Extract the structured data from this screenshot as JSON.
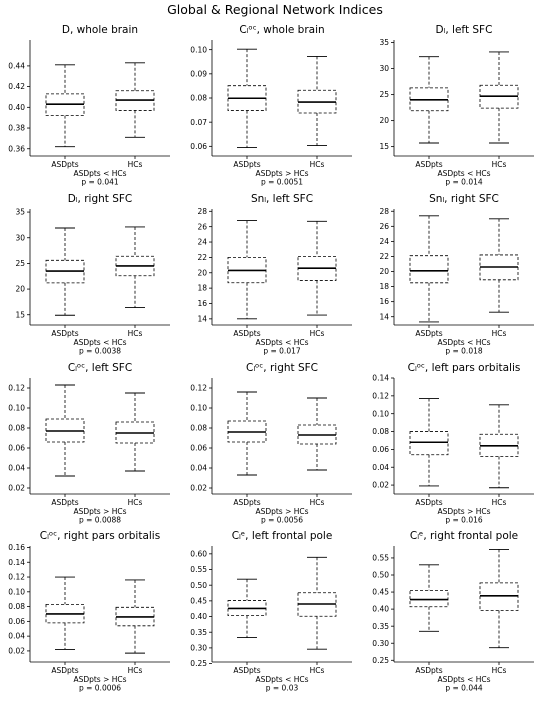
{
  "figure_title": "Global & Regional Network Indices",
  "chart_data": [
    {
      "type": "boxplot",
      "title": "D, whole brain",
      "categories": [
        "ASDpts",
        "HCs"
      ],
      "yticks": [
        0.36,
        0.38,
        0.4,
        0.42,
        0.44
      ],
      "ylim": [
        0.353,
        0.465
      ],
      "boxes": [
        {
          "whislo": 0.362,
          "q1": 0.392,
          "med": 0.403,
          "q3": 0.413,
          "whishi": 0.441
        },
        {
          "whislo": 0.371,
          "q1": 0.397,
          "med": 0.407,
          "q3": 0.416,
          "whishi": 0.443
        }
      ],
      "annotation": [
        "ASDpts < HCs",
        "p = 0.041"
      ]
    },
    {
      "type": "boxplot",
      "title": "Cₗᵒᶜ, whole brain",
      "categories": [
        "ASDpts",
        "HCs"
      ],
      "yticks": [
        0.06,
        0.07,
        0.08,
        0.09,
        0.1
      ],
      "ylim": [
        0.056,
        0.104
      ],
      "boxes": [
        {
          "whislo": 0.0595,
          "q1": 0.0748,
          "med": 0.0799,
          "q3": 0.0851,
          "whishi": 0.1002
        },
        {
          "whislo": 0.0603,
          "q1": 0.0738,
          "med": 0.0783,
          "q3": 0.0832,
          "whishi": 0.0972
        }
      ],
      "annotation": [
        "ASDpts > HCs",
        "p = 0.0051"
      ]
    },
    {
      "type": "boxplot",
      "title": "Dₗ, left SFC",
      "categories": [
        "ASDpts",
        "HCs"
      ],
      "yticks": [
        15,
        20,
        25,
        30,
        35
      ],
      "ylim": [
        13.2,
        35.5
      ],
      "boxes": [
        {
          "whislo": 15.7,
          "q1": 21.9,
          "med": 24.0,
          "q3": 26.3,
          "whishi": 32.3
        },
        {
          "whislo": 15.7,
          "q1": 22.4,
          "med": 24.7,
          "q3": 26.8,
          "whishi": 33.2
        }
      ],
      "annotation": [
        "ASDpts < HCs",
        "p = 0.014"
      ]
    },
    {
      "type": "boxplot",
      "title": "Dₗ, right SFC",
      "categories": [
        "ASDpts",
        "HCs"
      ],
      "yticks": [
        15,
        20,
        25,
        30,
        35
      ],
      "ylim": [
        13.0,
        35.6
      ],
      "boxes": [
        {
          "whislo": 14.9,
          "q1": 21.2,
          "med": 23.5,
          "q3": 25.6,
          "whishi": 31.9
        },
        {
          "whislo": 16.4,
          "q1": 22.6,
          "med": 24.5,
          "q3": 26.4,
          "whishi": 32.1
        }
      ],
      "annotation": [
        "ASDpts < HCs",
        "p = 0.0038"
      ]
    },
    {
      "type": "boxplot",
      "title": "Snₗ, left SFC",
      "categories": [
        "ASDpts",
        "HCs"
      ],
      "yticks": [
        14,
        16,
        18,
        20,
        22,
        24,
        26,
        28
      ],
      "ylim": [
        13.2,
        28.3
      ],
      "boxes": [
        {
          "whislo": 14.0,
          "q1": 18.7,
          "med": 20.3,
          "q3": 22.0,
          "whishi": 26.8
        },
        {
          "whislo": 14.5,
          "q1": 19.0,
          "med": 20.6,
          "q3": 22.1,
          "whishi": 26.7
        }
      ],
      "annotation": [
        "ASDpts < HCs",
        "p = 0.017"
      ]
    },
    {
      "type": "boxplot",
      "title": "Snₗ, right SFC",
      "categories": [
        "ASDpts",
        "HCs"
      ],
      "yticks": [
        14,
        16,
        18,
        20,
        22,
        24,
        26,
        28
      ],
      "ylim": [
        12.9,
        28.3
      ],
      "boxes": [
        {
          "whislo": 13.3,
          "q1": 18.5,
          "med": 20.1,
          "q3": 22.1,
          "whishi": 27.4
        },
        {
          "whislo": 14.6,
          "q1": 18.9,
          "med": 20.6,
          "q3": 22.2,
          "whishi": 27.0
        }
      ],
      "annotation": [
        "ASDpts < HCs",
        "p = 0.018"
      ]
    },
    {
      "type": "boxplot",
      "title": "Cₗᵒᶜ, left SFC",
      "categories": [
        "ASDpts",
        "HCs"
      ],
      "yticks": [
        0.02,
        0.04,
        0.06,
        0.08,
        0.1,
        0.12
      ],
      "ylim": [
        0.014,
        0.13
      ],
      "boxes": [
        {
          "whislo": 0.032,
          "q1": 0.066,
          "med": 0.077,
          "q3": 0.089,
          "whishi": 0.123
        },
        {
          "whislo": 0.037,
          "q1": 0.065,
          "med": 0.075,
          "q3": 0.086,
          "whishi": 0.115
        }
      ],
      "annotation": [
        "ASDpts > HCs",
        "p = 0.0088"
      ]
    },
    {
      "type": "boxplot",
      "title": "Cₗᵒᶜ, right SFC",
      "categories": [
        "ASDpts",
        "HCs"
      ],
      "yticks": [
        0.02,
        0.04,
        0.06,
        0.08,
        0.1,
        0.12
      ],
      "ylim": [
        0.014,
        0.13
      ],
      "boxes": [
        {
          "whislo": 0.033,
          "q1": 0.066,
          "med": 0.076,
          "q3": 0.087,
          "whishi": 0.116
        },
        {
          "whislo": 0.038,
          "q1": 0.064,
          "med": 0.073,
          "q3": 0.083,
          "whishi": 0.11
        }
      ],
      "annotation": [
        "ASDpts > HCs",
        "p = 0.0056"
      ]
    },
    {
      "type": "boxplot",
      "title": "Cₗᵒᶜ, left pars orbitalis",
      "categories": [
        "ASDpts",
        "HCs"
      ],
      "yticks": [
        0.02,
        0.04,
        0.06,
        0.08,
        0.1,
        0.12,
        0.14
      ],
      "ylim": [
        0.01,
        0.14
      ],
      "boxes": [
        {
          "whislo": 0.019,
          "q1": 0.054,
          "med": 0.068,
          "q3": 0.08,
          "whishi": 0.117
        },
        {
          "whislo": 0.017,
          "q1": 0.052,
          "med": 0.064,
          "q3": 0.077,
          "whishi": 0.11
        }
      ],
      "annotation": [
        "ASDpts > HCs",
        "p = 0.016"
      ]
    },
    {
      "type": "boxplot",
      "title": "Cₗᵒᶜ, right pars orbitalis",
      "categories": [
        "ASDpts",
        "HCs"
      ],
      "yticks": [
        0.02,
        0.04,
        0.06,
        0.08,
        0.1,
        0.12,
        0.14,
        0.16
      ],
      "ylim": [
        0.005,
        0.162
      ],
      "boxes": [
        {
          "whislo": 0.022,
          "q1": 0.058,
          "med": 0.07,
          "q3": 0.083,
          "whishi": 0.12
        },
        {
          "whislo": 0.017,
          "q1": 0.054,
          "med": 0.066,
          "q3": 0.079,
          "whishi": 0.116
        }
      ],
      "annotation": [
        "ASDpts > HCs",
        "p = 0.0006"
      ]
    },
    {
      "type": "boxplot",
      "title": "Cₗᵉ, left frontal pole",
      "categories": [
        "ASDpts",
        "HCs"
      ],
      "yticks": [
        0.25,
        0.3,
        0.35,
        0.4,
        0.45,
        0.5,
        0.55,
        0.6
      ],
      "ylim": [
        0.255,
        0.625
      ],
      "boxes": [
        {
          "whislo": 0.333,
          "q1": 0.403,
          "med": 0.426,
          "q3": 0.451,
          "whishi": 0.519
        },
        {
          "whislo": 0.296,
          "q1": 0.401,
          "med": 0.44,
          "q3": 0.476,
          "whishi": 0.589
        }
      ],
      "annotation": [
        "ASDpts < HCs",
        "p = 0.03"
      ]
    },
    {
      "type": "boxplot",
      "title": "Cₗᵉ, right frontal pole",
      "categories": [
        "ASDpts",
        "HCs"
      ],
      "yticks": [
        0.25,
        0.3,
        0.35,
        0.4,
        0.45,
        0.5,
        0.55
      ],
      "ylim": [
        0.245,
        0.585
      ],
      "boxes": [
        {
          "whislo": 0.335,
          "q1": 0.407,
          "med": 0.428,
          "q3": 0.455,
          "whishi": 0.53
        },
        {
          "whislo": 0.287,
          "q1": 0.396,
          "med": 0.439,
          "q3": 0.477,
          "whishi": 0.575
        }
      ],
      "annotation": [
        "ASDpts < HCs",
        "p = 0.044"
      ]
    }
  ]
}
